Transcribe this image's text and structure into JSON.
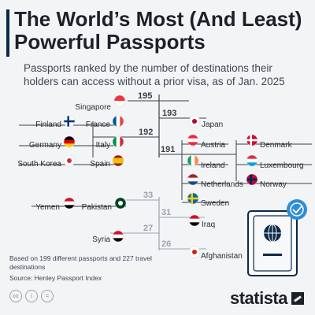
{
  "header": {
    "title": "The World’s Most (And Least) Powerful Passports",
    "subtitle": "Passports ranked by the number of destinations their holders can access without a prior visa, as of Jan. 2025"
  },
  "footer": {
    "note": "Based on 199 different passports and 227 travel destinations",
    "source": "Source: Henley Passport Index",
    "license_icons": [
      "cc",
      "i",
      "="
    ],
    "brand": "statista"
  },
  "colors": {
    "dark": "#2a2f38",
    "line": "#3a3f47",
    "muted": "#9aa3ad",
    "badge_bg": "#0b2a4a",
    "badge_accent": "#2d8ed6"
  },
  "icons": [
    "passport-icon",
    "globe-icon",
    "cc-license-icon",
    "statista-logo-icon"
  ],
  "chart_data": {
    "type": "table",
    "groups": [
      {
        "score": 195,
        "rank": "most",
        "countries": [
          "Singapore"
        ]
      },
      {
        "score": 193,
        "rank": "most",
        "countries": [
          "Japan"
        ]
      },
      {
        "score": 192,
        "rank": "most",
        "countries": [
          "Finland",
          "France",
          "Germany",
          "Italy",
          "South Korea",
          "Spain"
        ]
      },
      {
        "score": 191,
        "rank": "most",
        "countries": [
          "Austria",
          "Denmark",
          "Ireland",
          "Luxembourg",
          "Netherlands",
          "Norway",
          "Sweden"
        ]
      },
      {
        "score": 33,
        "rank": "least",
        "countries": [
          "Yemen",
          "Pakistan"
        ]
      },
      {
        "score": 31,
        "rank": "least",
        "countries": [
          "Iraq"
        ]
      },
      {
        "score": 27,
        "rank": "least",
        "countries": [
          "Syria"
        ]
      },
      {
        "score": 26,
        "rank": "least",
        "countries": [
          "Afghanistan"
        ]
      }
    ]
  }
}
